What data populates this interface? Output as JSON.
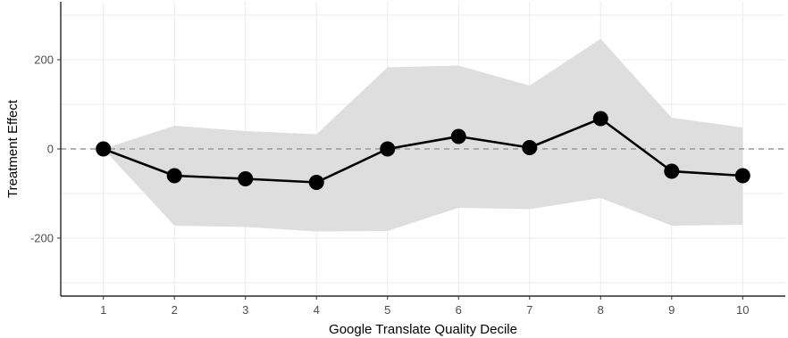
{
  "chart_data": {
    "type": "line",
    "title": "",
    "xlabel": "Google Translate Quality Decile",
    "ylabel": "Treatment Effect",
    "x": [
      1,
      2,
      3,
      4,
      5,
      6,
      7,
      8,
      9,
      10
    ],
    "x_tick_labels": [
      "1",
      "2",
      "3",
      "4",
      "5",
      "6",
      "7",
      "8",
      "9",
      "10"
    ],
    "xlim": [
      0.4,
      10.6
    ],
    "ylim": [
      -330,
      330
    ],
    "y_ticks": [
      200,
      0,
      -200
    ],
    "y_tick_labels": [
      "200",
      "0",
      "-200"
    ],
    "grid": true,
    "legend": "none",
    "reference_line": {
      "y": 0,
      "style": "dashed",
      "color": "#999999"
    },
    "series": [
      {
        "values": [
          0,
          -60,
          -67,
          -75,
          0,
          28,
          3,
          68,
          -50,
          -60
        ],
        "lower": [
          0,
          -172,
          -175,
          -185,
          -184,
          -132,
          -135,
          -110,
          -172,
          -170
        ],
        "upper": [
          0,
          52,
          40,
          33,
          183,
          187,
          142,
          247,
          70,
          48
        ],
        "line_color": "#000000",
        "marker": "circle",
        "band_color": "#dedede"
      }
    ]
  }
}
